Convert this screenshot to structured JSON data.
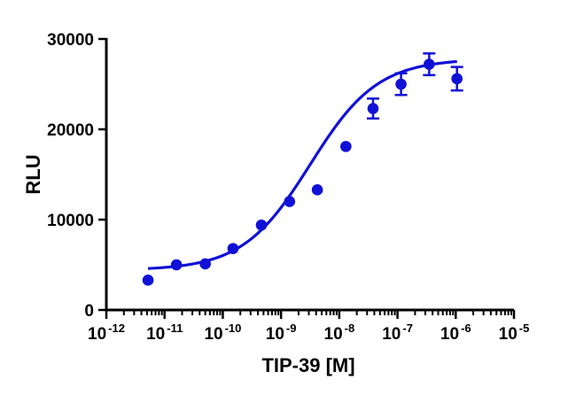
{
  "chart_data": {
    "type": "scatter",
    "title": "",
    "xlabel": "TIP-39 [M]",
    "ylabel": "RLU",
    "x_scale": "log10",
    "xlim": [
      1e-12,
      1e-05
    ],
    "ylim": [
      0,
      30000
    ],
    "x_ticks": [
      {
        "base": "10",
        "exp": "-12"
      },
      {
        "base": "10",
        "exp": "-11"
      },
      {
        "base": "10",
        "exp": "-10"
      },
      {
        "base": "10",
        "exp": "-9"
      },
      {
        "base": "10",
        "exp": "-8"
      },
      {
        "base": "10",
        "exp": "-7"
      },
      {
        "base": "10",
        "exp": "-6"
      },
      {
        "base": "10",
        "exp": "-5"
      }
    ],
    "y_ticks": [
      "0",
      "10000",
      "20000",
      "30000"
    ],
    "grid": false,
    "colors": {
      "series": "#1010d6",
      "axis": "#000000"
    },
    "series": [
      {
        "marker": "circle",
        "x": [
          5.2e-12,
          1.6e-11,
          5e-11,
          1.5e-10,
          4.6e-10,
          1.4e-09,
          4.2e-09,
          1.3e-08,
          3.8e-08,
          1.15e-07,
          3.5e-07,
          1.05e-06
        ],
        "y": [
          3300,
          5000,
          5100,
          6800,
          9400,
          12000,
          13300,
          18100,
          22300,
          25000,
          27200,
          25600
        ],
        "error": [
          0,
          0,
          0,
          0,
          0,
          0,
          0,
          0,
          1100,
          1200,
          1200,
          1300
        ]
      }
    ],
    "fit": {
      "model": "four-parameter logistic",
      "bottom": 4400,
      "top": 27800,
      "log_ec50": -8.5,
      "hill_slope": 0.75,
      "x_range": [
        5.2e-12,
        1.05e-06
      ]
    }
  }
}
